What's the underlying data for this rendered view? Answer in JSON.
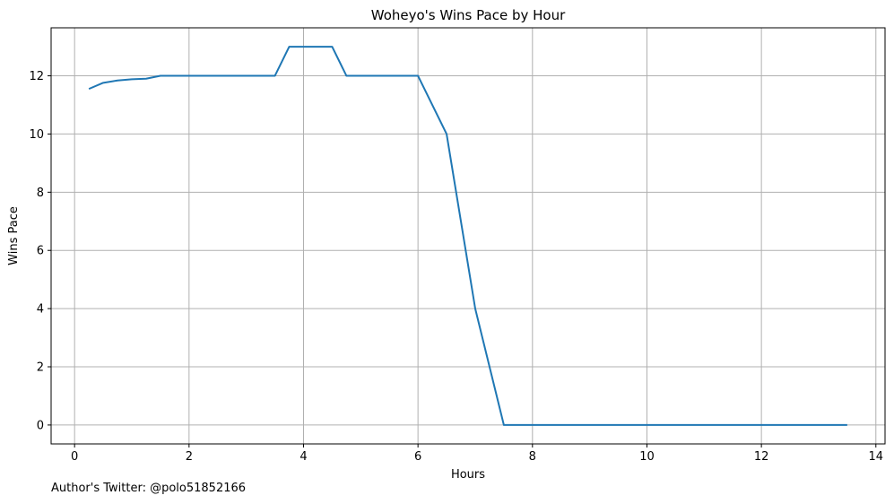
{
  "chart_data": {
    "type": "line",
    "title": "Woheyo's Wins Pace by Hour",
    "xlabel": "Hours",
    "ylabel": "Wins Pace",
    "xlim": [
      -0.41,
      14.16
    ],
    "ylim": [
      -0.65,
      13.65
    ],
    "xticks": [
      0,
      2,
      4,
      6,
      8,
      10,
      12,
      14
    ],
    "yticks": [
      0,
      2,
      4,
      6,
      8,
      10,
      12
    ],
    "grid": true,
    "line_color": "#1f77b4",
    "grid_color": "#b0b0b0",
    "series": [
      {
        "x": [
          0.25,
          0.5,
          0.75,
          1.0,
          1.25,
          1.5,
          1.75,
          2.0,
          2.25,
          2.5,
          2.75,
          3.0,
          3.25,
          3.5,
          3.75,
          4.0,
          4.25,
          4.5,
          4.75,
          5.0,
          5.25,
          5.5,
          5.75,
          6.0,
          6.5,
          7.0,
          7.5,
          8.0,
          8.5,
          9.0,
          9.5,
          10.0,
          10.5,
          11.0,
          11.5,
          12.0,
          12.5,
          13.0,
          13.5
        ],
        "y": [
          11.55,
          11.76,
          11.84,
          11.88,
          11.9,
          12,
          12,
          12,
          12,
          12,
          12,
          12,
          12,
          12,
          13,
          13,
          13,
          13,
          12,
          12,
          12,
          12,
          12,
          12,
          10,
          4,
          0,
          0,
          0,
          0,
          0,
          0,
          0,
          0,
          0,
          0,
          0,
          0,
          0
        ]
      }
    ],
    "footnote": "Author's Twitter: @polo51852166"
  }
}
